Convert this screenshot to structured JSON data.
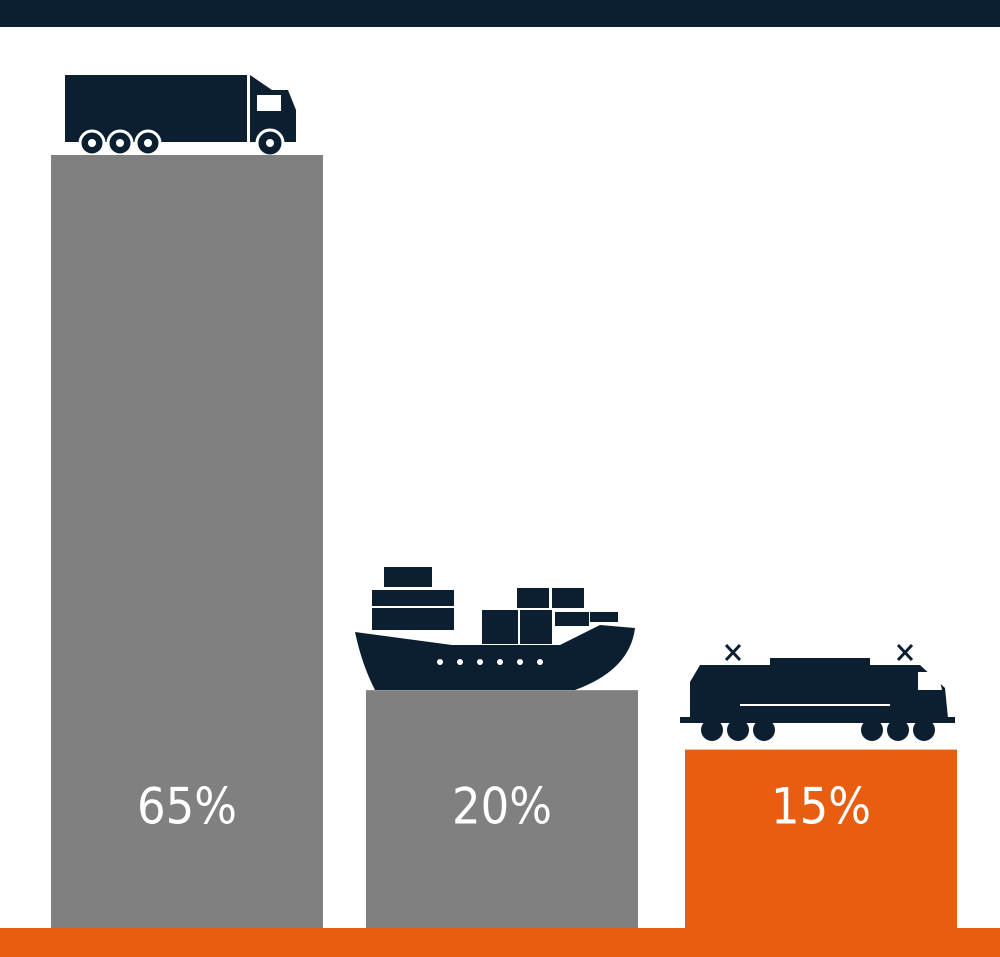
{
  "chart_data": {
    "type": "bar",
    "values": [
      65,
      20,
      15
    ],
    "value_labels": [
      "65%",
      "20%",
      "15%"
    ],
    "colors": [
      "#808080",
      "#808080",
      "#e85d0f"
    ]
  }
}
